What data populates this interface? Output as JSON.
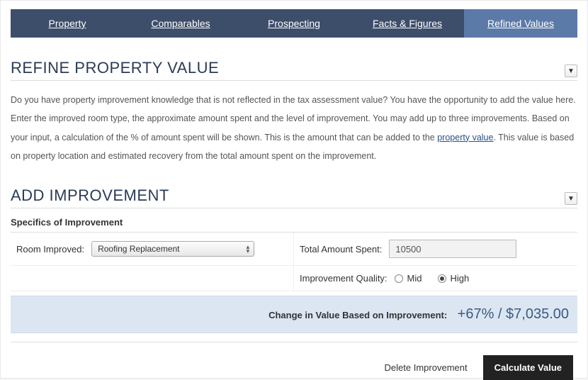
{
  "tabs": {
    "items": [
      {
        "label": "Property",
        "active": false
      },
      {
        "label": "Comparables",
        "active": false
      },
      {
        "label": "Prospecting",
        "active": false
      },
      {
        "label": "Facts & Figures",
        "active": false
      },
      {
        "label": "Refined Values",
        "active": true
      }
    ]
  },
  "refine_section": {
    "title": "REFINE PROPERTY VALUE",
    "description_pre": "Do you have property improvement knowledge that is not reflected in the tax assessment value? You have the opportunity to add the value here. Enter the improved room type, the approximate amount spent and the level of improvement. You may add up to three improvements. Based on your input, a calculation of the % of amount spent will be shown. This is the amount that can be added to the ",
    "description_link": "property value",
    "description_post": ". This value is based on property location and estimated recovery from the total amount spent on the improvement."
  },
  "add_section": {
    "title": "ADD IMPROVEMENT",
    "subheader": "Specifics of Improvement",
    "room_label": "Room Improved:",
    "room_value": "Roofing Replacement",
    "amount_label": "Total Amount Spent:",
    "amount_value": "10500",
    "quality_label": "Improvement Quality:",
    "quality_options": {
      "mid": "Mid",
      "high": "High"
    },
    "quality_selected": "high",
    "result_label": "Change in Value Based on Improvement:",
    "result_value": "+67% / $7,035.00"
  },
  "actions": {
    "delete": "Delete Improvement",
    "calculate": "Calculate Value"
  },
  "colors": {
    "tab_bg": "#3d4e6b",
    "tab_active_bg": "#5b7aa8",
    "heading": "#2b3b55",
    "result_bg": "#dbe6f2",
    "result_text": "#3d5a80",
    "primary_btn_bg": "#222222"
  }
}
